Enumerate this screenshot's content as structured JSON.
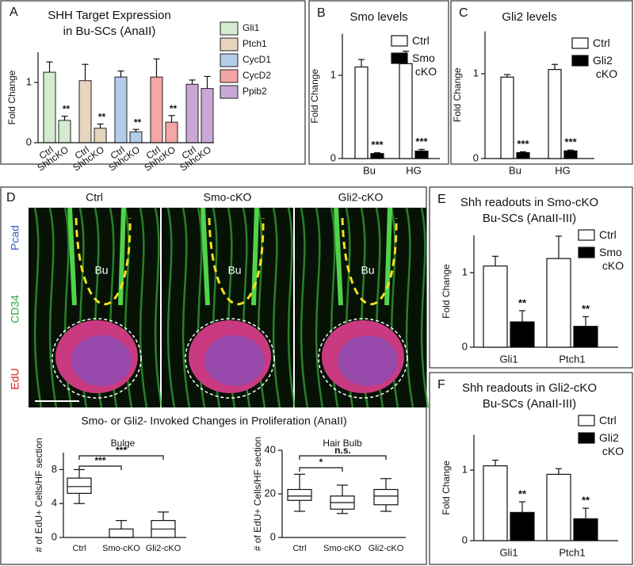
{
  "chart_data": [
    {
      "panel": "A",
      "type": "bar",
      "title": "SHH Target Expression",
      "subtitle": "in Bu-SCs (AnaII)",
      "ylabel": "Fold Change",
      "ylim": [
        0,
        1.5
      ],
      "yticks": [
        0,
        1
      ],
      "series": [
        {
          "name": "Gli1",
          "color": "#d4ebcf",
          "categories": [
            "Ctrl",
            "ShhcKO"
          ],
          "values": [
            1.17,
            0.37
          ],
          "errors": [
            0.17,
            0.07
          ],
          "annotations": [
            null,
            "**"
          ]
        },
        {
          "name": "Ptch1",
          "color": "#e6d4be",
          "categories": [
            "Ctrl",
            "ShhcKO"
          ],
          "values": [
            1.03,
            0.24
          ],
          "errors": [
            0.27,
            0.07
          ],
          "annotations": [
            null,
            "**"
          ]
        },
        {
          "name": "CycD1",
          "color": "#b6cde9",
          "categories": [
            "Ctrl",
            "ShhcKO"
          ],
          "values": [
            1.09,
            0.18
          ],
          "errors": [
            0.1,
            0.04
          ],
          "annotations": [
            null,
            "**"
          ]
        },
        {
          "name": "CycD2",
          "color": "#f4a5a5",
          "categories": [
            "Ctrl",
            "ShhcKO"
          ],
          "values": [
            1.09,
            0.34
          ],
          "errors": [
            0.3,
            0.11
          ],
          "annotations": [
            null,
            "**"
          ]
        },
        {
          "name": "Ppib2",
          "color": "#c9a8d8",
          "categories": [
            "Ctrl",
            "ShhcKO"
          ],
          "values": [
            0.97,
            0.9
          ],
          "errors": [
            0.07,
            0.2
          ],
          "annotations": [
            null,
            null
          ]
        }
      ]
    },
    {
      "panel": "B",
      "type": "bar",
      "title": "Smo levels",
      "ylabel": "Fold Change",
      "ylim": [
        0,
        1.5
      ],
      "yticks": [
        0,
        1
      ],
      "categories": [
        "Bu",
        "HG"
      ],
      "series": [
        {
          "name": "Ctrl",
          "color": "#ffffff",
          "values": [
            1.1,
            1.14
          ],
          "errors": [
            0.09,
            0.15
          ]
        },
        {
          "name": "Smo cKO",
          "color": "#000000",
          "values": [
            0.06,
            0.09
          ],
          "errors": [
            0.01,
            0.02
          ],
          "annotations": [
            "***",
            "***"
          ]
        }
      ]
    },
    {
      "panel": "C",
      "type": "bar",
      "title": "Gli2 levels",
      "ylabel": "Fold Change",
      "ylim": [
        0,
        1.5
      ],
      "yticks": [
        0,
        1
      ],
      "categories": [
        "Bu",
        "HG"
      ],
      "series": [
        {
          "name": "Ctrl",
          "color": "#ffffff",
          "values": [
            0.96,
            1.05
          ],
          "errors": [
            0.03,
            0.06
          ]
        },
        {
          "name": "Gli2 cKO",
          "color": "#000000",
          "values": [
            0.07,
            0.09
          ],
          "errors": [
            0.01,
            0.01
          ],
          "annotations": [
            "***",
            "***"
          ]
        }
      ]
    },
    {
      "panel": "E",
      "type": "bar",
      "title": "Shh readouts in Smo-cKO",
      "subtitle": "Bu-SCs (AnaII-III)",
      "ylabel": "Fold Change",
      "ylim": [
        0,
        1.5
      ],
      "yticks": [
        0,
        1
      ],
      "categories": [
        "Gli1",
        "Ptch1"
      ],
      "series": [
        {
          "name": "Ctrl",
          "color": "#ffffff",
          "values": [
            1.09,
            1.19
          ],
          "errors": [
            0.13,
            0.3
          ]
        },
        {
          "name": "Smo cKO",
          "color": "#000000",
          "values": [
            0.34,
            0.28
          ],
          "errors": [
            0.15,
            0.13
          ],
          "annotations": [
            "**",
            "**"
          ]
        }
      ]
    },
    {
      "panel": "F",
      "type": "bar",
      "title": "Shh readouts in Gli2-cKO",
      "subtitle": "Bu-SCs (AnaII-III)",
      "ylabel": "Fold Change",
      "ylim": [
        0,
        1.5
      ],
      "yticks": [
        0,
        1
      ],
      "categories": [
        "Gli1",
        "Ptch1"
      ],
      "series": [
        {
          "name": "Ctrl",
          "color": "#ffffff",
          "values": [
            1.06,
            0.94
          ],
          "errors": [
            0.08,
            0.08
          ]
        },
        {
          "name": "Gli2 cKO",
          "color": "#000000",
          "values": [
            0.4,
            0.31
          ],
          "errors": [
            0.15,
            0.15
          ],
          "annotations": [
            "**",
            "**"
          ]
        }
      ]
    },
    {
      "type": "box",
      "title": "Bulge",
      "ylabel": "# of EdU+ Cells/HF section",
      "ylim": [
        0,
        10
      ],
      "yticks": [
        0,
        4,
        8
      ],
      "categories": [
        "Ctrl",
        "Smo-cKO",
        "Gli2-cKO"
      ],
      "min": [
        4,
        0,
        0
      ],
      "q1": [
        5.2,
        0,
        0
      ],
      "median": [
        6,
        0,
        1
      ],
      "q3": [
        7,
        1,
        2
      ],
      "max": [
        8,
        2,
        3
      ],
      "annotations": [
        {
          "from": 0,
          "to": 1,
          "text": "***"
        },
        {
          "from": 0,
          "to": 2,
          "text": "***"
        }
      ]
    },
    {
      "type": "box",
      "title": "Hair Bulb",
      "ylabel": "# of EdU+ Cells/HF section",
      "ylim": [
        0,
        40
      ],
      "yticks": [
        0,
        20,
        40
      ],
      "categories": [
        "Ctrl",
        "Smo-cKO",
        "Gli2-cKO"
      ],
      "min": [
        12,
        11,
        12
      ],
      "q1": [
        17,
        13,
        15
      ],
      "median": [
        19,
        16,
        19
      ],
      "q3": [
        22,
        19,
        22
      ],
      "max": [
        29,
        24,
        27
      ],
      "annotations": [
        {
          "from": 0,
          "to": 1,
          "text": "*"
        },
        {
          "from": 0,
          "to": 2,
          "text": "n.s."
        }
      ]
    }
  ],
  "figure": {
    "panel": "D",
    "columns": [
      "Ctrl",
      "Smo-cKO",
      "Gli2-cKO"
    ],
    "stains": [
      "Pcad",
      "CD34",
      "EdU"
    ],
    "region": "Bu",
    "caption": "Smo- or Gli2- Invoked Changes in Proliferation (AnaII)"
  }
}
